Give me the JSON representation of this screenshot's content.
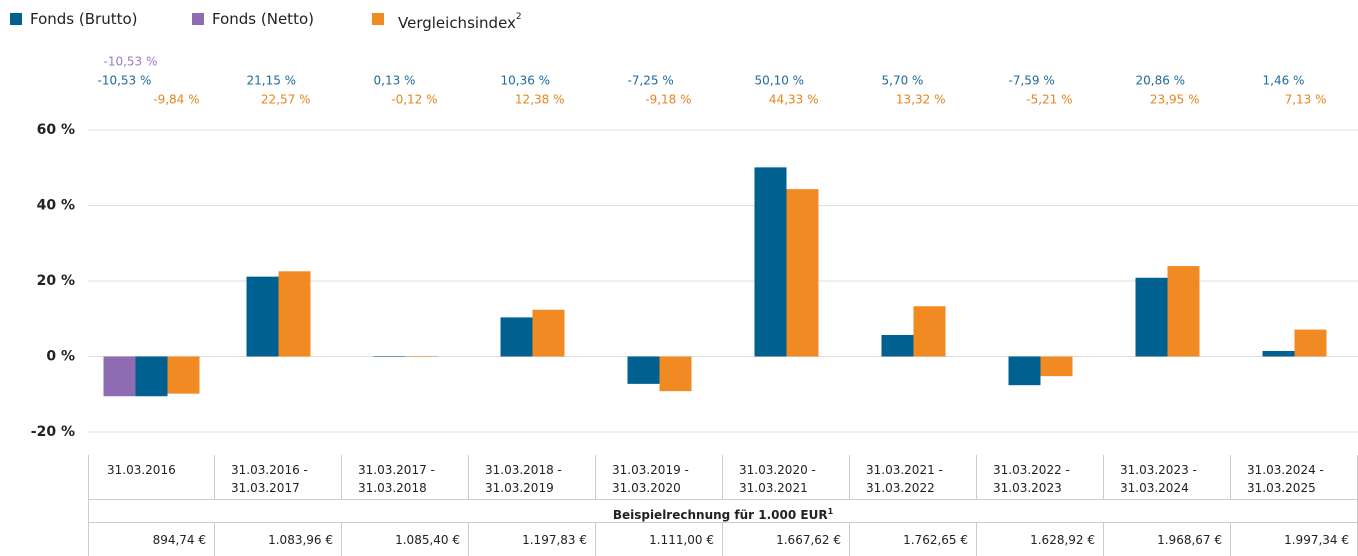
{
  "chart_data": {
    "type": "bar",
    "categories": [
      "31.03.2016",
      "31.03.2016 - 31.03.2017",
      "31.03.2017 - 31.03.2018",
      "31.03.2018 - 31.03.2019",
      "31.03.2019 - 31.03.2020",
      "31.03.2020 - 31.03.2021",
      "31.03.2021 - 31.03.2022",
      "31.03.2022 - 31.03.2023",
      "31.03.2023 - 31.03.2024",
      "31.03.2024 - 31.03.2025"
    ],
    "series": [
      {
        "name": "Fonds (Brutto)",
        "color": "#00608f",
        "label_color": "#1f6b99",
        "values": [
          -10.53,
          21.15,
          0.13,
          10.36,
          -7.25,
          50.1,
          5.7,
          -7.59,
          20.86,
          1.46
        ],
        "value_labels": [
          "-10,53 %",
          "21,15 %",
          "0,13 %",
          "10,36 %",
          "-7,25 %",
          "50,10 %",
          "5,70 %",
          "-7,59 %",
          "20,86 %",
          "1,46 %"
        ]
      },
      {
        "name": "Fonds (Netto)",
        "color": "#8e6db2",
        "label_color": "#9b7bc3",
        "values": [
          -10.53,
          null,
          null,
          null,
          null,
          null,
          null,
          null,
          null,
          null
        ],
        "value_labels": [
          "-10,53 %",
          null,
          null,
          null,
          null,
          null,
          null,
          null,
          null,
          null
        ]
      },
      {
        "name": "Vergleichsindex",
        "footnote": "2",
        "color": "#f28a24",
        "label_color": "#e8841c",
        "values": [
          -9.84,
          22.57,
          -0.12,
          12.38,
          -9.18,
          44.33,
          13.32,
          -5.21,
          23.95,
          7.13
        ],
        "value_labels": [
          "-9,84 %",
          "22,57 %",
          "-0,12 %",
          "12,38 %",
          "-9,18 %",
          "44,33 %",
          "13,32 %",
          "-5,21 %",
          "23,95 %",
          "7,13 %"
        ]
      }
    ],
    "ylim": [
      -20,
      60
    ],
    "yticks": [
      {
        "value": -20,
        "label": "-20 %"
      },
      {
        "value": 0,
        "label": "0 %"
      },
      {
        "value": 20,
        "label": "20 %"
      },
      {
        "value": 40,
        "label": "40 %"
      },
      {
        "value": 60,
        "label": "60 %"
      }
    ],
    "grid": true
  },
  "example_table": {
    "caption": "Beispielrechnung für 1.000 EUR",
    "caption_footnote": "1",
    "values": [
      "894,74 €",
      "1.083,96 €",
      "1.085,40 €",
      "1.197,83 €",
      "1.111,00 €",
      "1.667,62 €",
      "1.762,65 €",
      "1.628,92 €",
      "1.968,67 €",
      "1.997,34 €"
    ]
  }
}
